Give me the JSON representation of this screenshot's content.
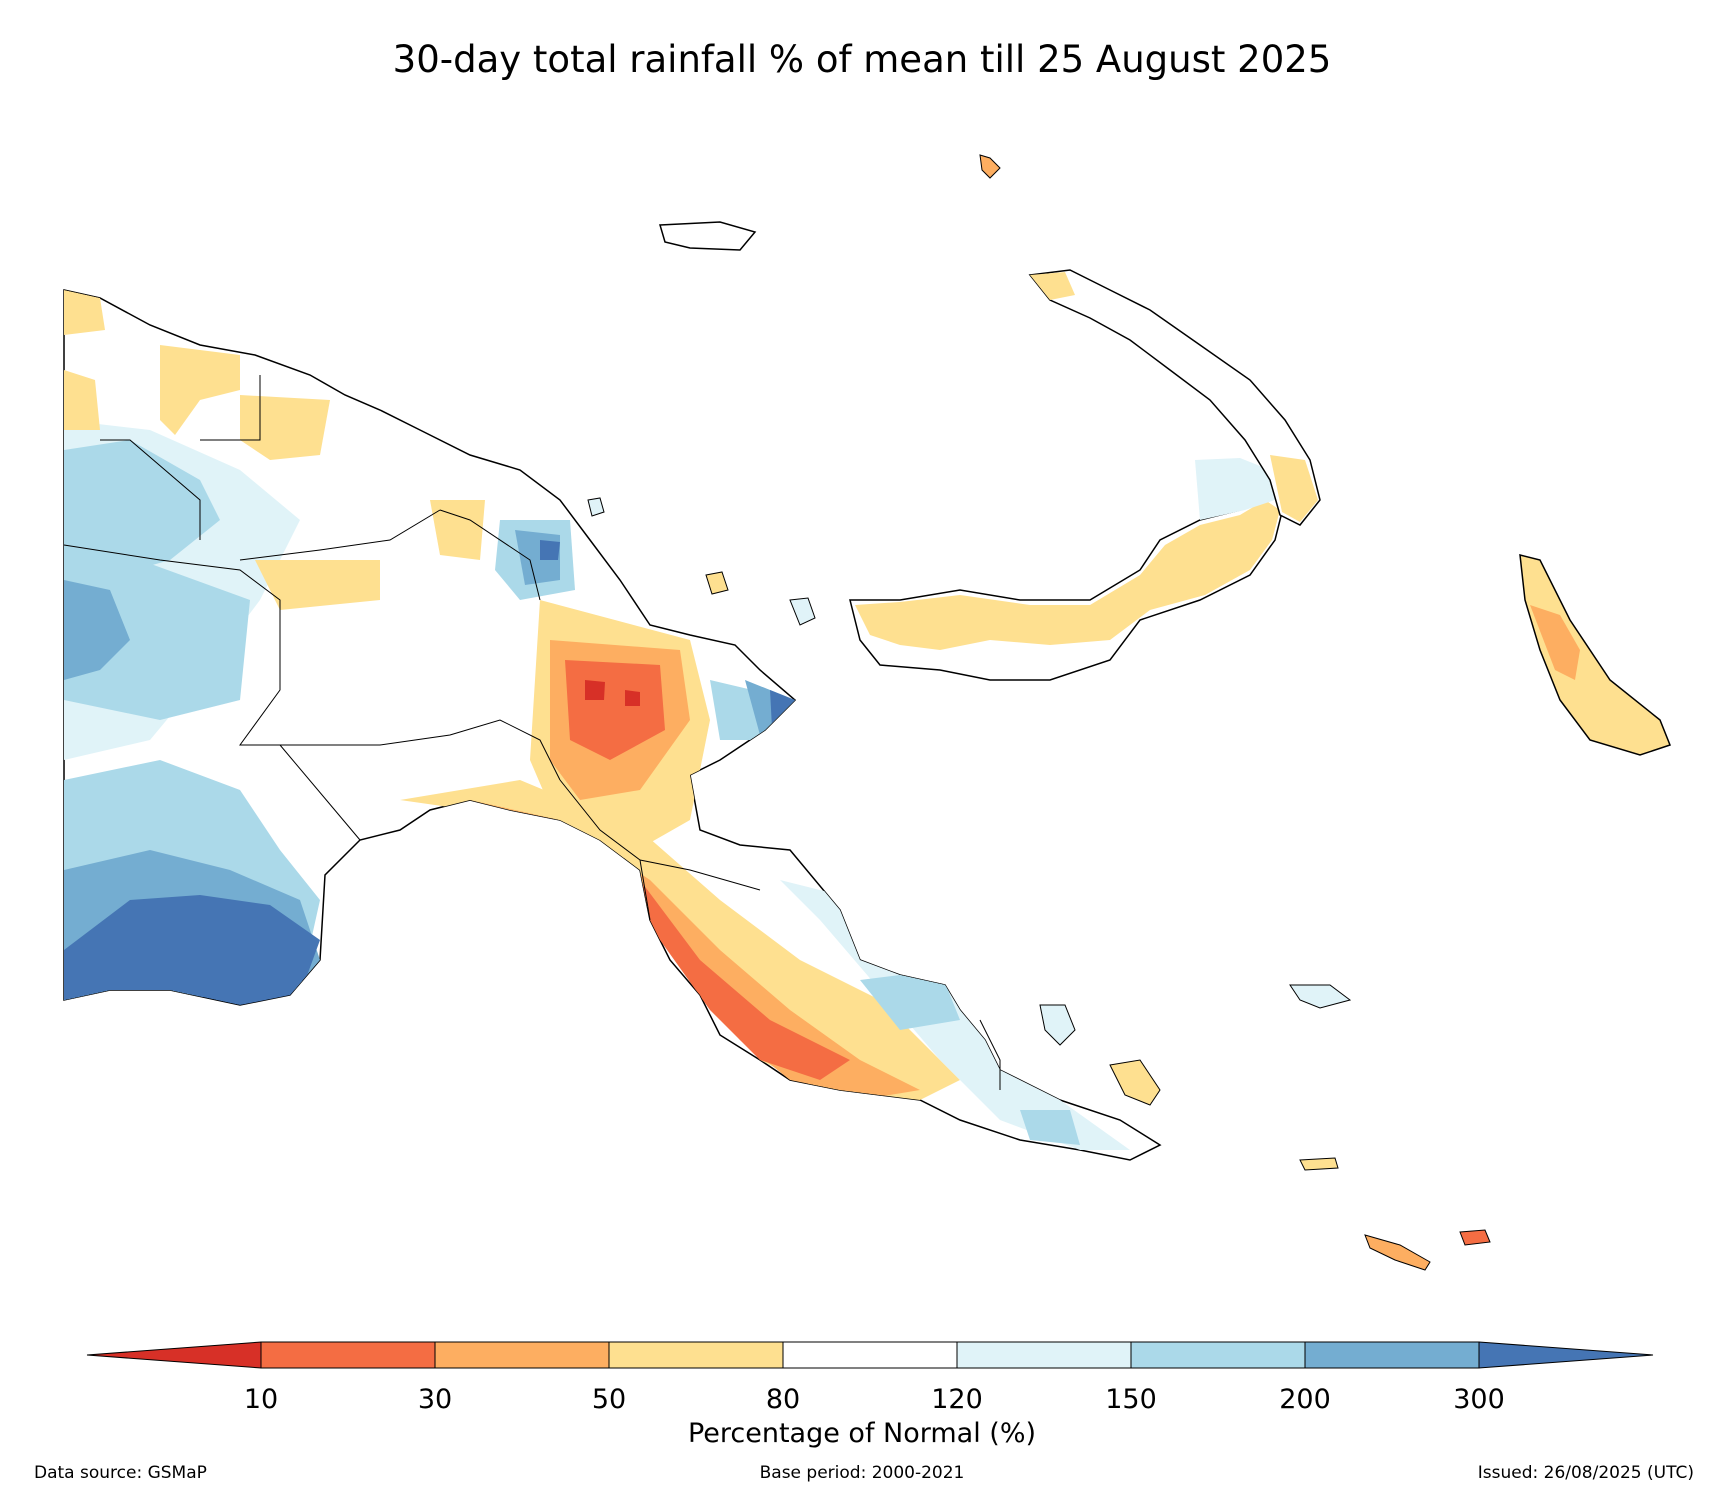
{
  "title": "30-day total rainfall % of mean till 25 August 2025",
  "colorbar": {
    "label": "Percentage of Normal (%)",
    "ticks": [
      "10",
      "30",
      "50",
      "80",
      "120",
      "150",
      "200",
      "300"
    ],
    "colors": [
      "#d73027",
      "#f46d43",
      "#fdae61",
      "#fee090",
      "#ffffff",
      "#e0f3f8",
      "#abd9e9",
      "#74add1",
      "#4575b4"
    ]
  },
  "footer": {
    "source": "Data source: GSMaP",
    "base_period": "Base period: 2000-2021",
    "issued": "Issued: 26/08/2025 (UTC)"
  }
}
